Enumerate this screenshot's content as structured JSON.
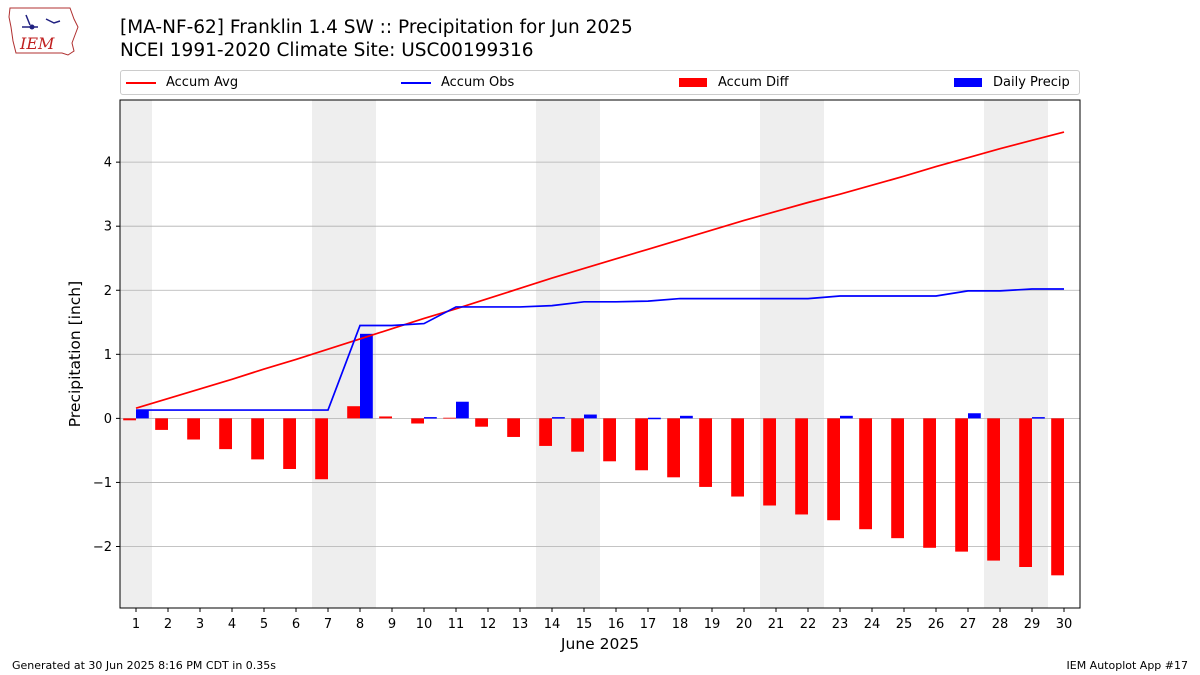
{
  "header": {
    "title_line1": "[MA-NF-62] Franklin 1.4 SW :: Precipitation for Jun 2025",
    "title_line2": "NCEI 1991-2020 Climate Site: USC00199316",
    "logo_text": "IEM"
  },
  "legend": {
    "items": [
      {
        "label": "Accum Avg",
        "kind": "line",
        "color": "#ff0000"
      },
      {
        "label": "Accum Obs",
        "kind": "line",
        "color": "#0000ff"
      },
      {
        "label": "Accum Diff",
        "kind": "bar",
        "color": "#ff0000"
      },
      {
        "label": "Daily Precip",
        "kind": "bar",
        "color": "#0000ff"
      }
    ]
  },
  "footer": {
    "left": "Generated at 30 Jun 2025 8:16 PM CDT in 0.35s",
    "right": "IEM Autoplot App #17"
  },
  "chart_data": {
    "type": "bar",
    "xlabel": "June 2025",
    "ylabel": "Precipitation [inch]",
    "x": [
      1,
      2,
      3,
      4,
      5,
      6,
      7,
      8,
      9,
      10,
      11,
      12,
      13,
      14,
      15,
      16,
      17,
      18,
      19,
      20,
      21,
      22,
      23,
      24,
      25,
      26,
      27,
      28,
      29,
      30
    ],
    "ylim": [
      -2.96,
      4.97
    ],
    "yticks": [
      -2,
      -1,
      0,
      1,
      2,
      3,
      4
    ],
    "weekend_shading": [
      [
        1,
        1
      ],
      [
        7,
        8
      ],
      [
        14,
        15
      ],
      [
        21,
        22
      ],
      [
        28,
        29
      ]
    ],
    "grid": "horizontal",
    "legend_position": "top",
    "series": [
      {
        "name": "Accum Avg",
        "type": "line",
        "color": "#ff0000",
        "values": [
          0.16,
          0.31,
          0.46,
          0.61,
          0.77,
          0.92,
          1.08,
          1.24,
          1.4,
          1.56,
          1.71,
          1.87,
          2.03,
          2.19,
          2.34,
          2.49,
          2.64,
          2.79,
          2.94,
          3.09,
          3.23,
          3.37,
          3.5,
          3.64,
          3.78,
          3.93,
          4.07,
          4.21,
          4.34,
          4.47
        ]
      },
      {
        "name": "Accum Obs",
        "type": "line",
        "color": "#0000ff",
        "values": [
          0.13,
          0.13,
          0.13,
          0.13,
          0.13,
          0.13,
          0.13,
          1.45,
          1.45,
          1.48,
          1.74,
          1.74,
          1.74,
          1.76,
          1.82,
          1.82,
          1.83,
          1.87,
          1.87,
          1.87,
          1.87,
          1.87,
          1.91,
          1.91,
          1.91,
          1.91,
          1.99,
          1.99,
          2.02,
          2.02
        ]
      },
      {
        "name": "Accum Diff",
        "type": "bar",
        "color": "#ff0000",
        "values": [
          -0.03,
          -0.18,
          -0.33,
          -0.48,
          -0.64,
          -0.79,
          -0.95,
          0.19,
          0.03,
          -0.08,
          0.01,
          -0.13,
          -0.29,
          -0.43,
          -0.52,
          -0.67,
          -0.81,
          -0.92,
          -1.07,
          -1.22,
          -1.36,
          -1.5,
          -1.59,
          -1.73,
          -1.87,
          -2.02,
          -2.08,
          -2.22,
          -2.32,
          -2.45
        ]
      },
      {
        "name": "Daily Precip",
        "type": "bar",
        "color": "#0000ff",
        "values": [
          0.13,
          0,
          0,
          0,
          0,
          0,
          0,
          1.32,
          0,
          0.02,
          0.26,
          0,
          0,
          0.02,
          0.06,
          0,
          0.01,
          0.04,
          0,
          0,
          0,
          0,
          0.04,
          0,
          0,
          0,
          0.08,
          0,
          0.02,
          0
        ]
      }
    ]
  }
}
